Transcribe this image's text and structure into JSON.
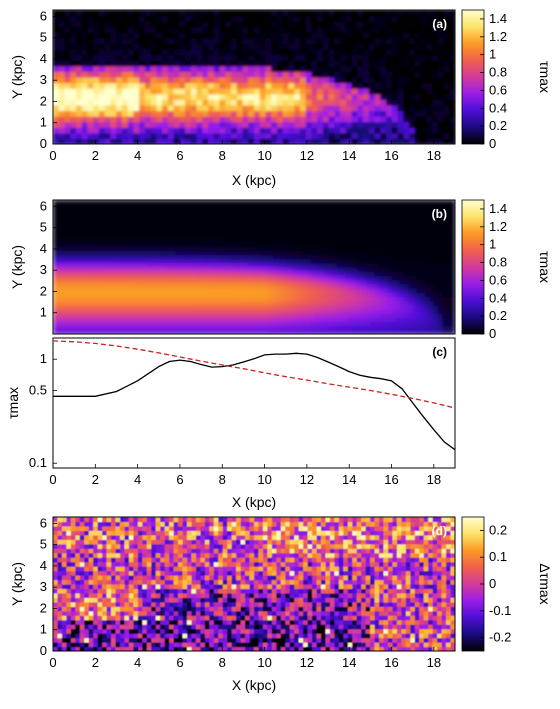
{
  "chart_data": [
    {
      "type": "heatmap",
      "panel_label": "(a)",
      "xlabel": "X (kpc)",
      "ylabel": "Y (kpc)",
      "xlim": [
        0,
        19
      ],
      "ylim": [
        0,
        6.3
      ],
      "xticks": [
        "0",
        "2",
        "4",
        "6",
        "8",
        "10",
        "12",
        "14",
        "16",
        "18"
      ],
      "yticks": [
        "0",
        "1",
        "2",
        "3",
        "4",
        "5",
        "6"
      ],
      "colorbar": {
        "label": "τmax",
        "range": [
          0,
          1.5
        ],
        "ticks": [
          "0",
          "0.2",
          "0.4",
          "0.6",
          "0.8",
          "1",
          "1.2",
          "1.4"
        ],
        "palette": [
          "#000000",
          "#1a0a80",
          "#4e0ed6",
          "#9a1ee8",
          "#d43a9a",
          "#f0604c",
          "#fb9a24",
          "#fde36a",
          "#ffffd0"
        ]
      },
      "description_values": {
        "peak_y": 2.2,
        "peak_value": 1.4,
        "disk_edge_x": 16.5,
        "disk_height_at_x0": 3.8
      }
    },
    {
      "type": "heatmap",
      "panel_label": "(b)",
      "xlabel": "",
      "ylabel": "Y (kpc)",
      "xlim": [
        0,
        19
      ],
      "ylim": [
        0,
        6.3
      ],
      "xticks": [],
      "yticks": [
        "1",
        "2",
        "3",
        "4",
        "5",
        "6"
      ],
      "colorbar": {
        "label": "τmax",
        "range": [
          0,
          1.5
        ],
        "ticks": [
          "0",
          "0.2",
          "0.4",
          "0.6",
          "0.8",
          "1",
          "1.2",
          "1.4"
        ],
        "palette": [
          "#000000",
          "#1a0a80",
          "#4e0ed6",
          "#9a1ee8",
          "#d43a9a",
          "#f0604c",
          "#fb9a24",
          "#fde36a",
          "#ffffd0"
        ]
      },
      "description_values": {
        "peak_y": 2.0,
        "peak_value": 1.0,
        "disk_edge_x": 18.5,
        "disk_height_at_x0": 3.6
      }
    },
    {
      "type": "line",
      "panel_label": "(c)",
      "xlabel": "X (kpc)",
      "ylabel": "τmax",
      "xlim": [
        0,
        19
      ],
      "ylim": [
        0.09,
        1.6
      ],
      "yscale": "log",
      "xticks": [
        "0",
        "2",
        "4",
        "6",
        "8",
        "10",
        "12",
        "14",
        "16",
        "18"
      ],
      "yticks": [
        {
          "label": "0.1",
          "value": 0.1
        },
        {
          "label": "0.5",
          "value": 0.5
        },
        {
          "label": "1",
          "value": 1.0
        }
      ],
      "series": [
        {
          "style": "solid",
          "color": "#000000",
          "x": [
            0,
            1,
            2,
            3,
            4,
            5,
            5.5,
            6,
            6.5,
            7,
            7.5,
            8,
            8.5,
            9,
            9.5,
            10,
            10.5,
            11,
            11.5,
            12,
            12.5,
            13,
            13.5,
            14,
            14.5,
            15,
            15.5,
            16,
            16.5,
            17,
            17.5,
            18,
            18.5,
            19
          ],
          "y": [
            0.44,
            0.44,
            0.44,
            0.49,
            0.62,
            0.85,
            0.95,
            0.98,
            0.95,
            0.89,
            0.84,
            0.85,
            0.88,
            0.94,
            1.01,
            1.1,
            1.12,
            1.12,
            1.14,
            1.12,
            1.04,
            0.94,
            0.85,
            0.76,
            0.7,
            0.67,
            0.65,
            0.62,
            0.52,
            0.38,
            0.28,
            0.21,
            0.16,
            0.135
          ]
        },
        {
          "style": "dashed",
          "color": "#cc2222",
          "x": [
            0,
            1,
            2,
            3,
            4,
            5,
            6,
            7,
            8,
            9,
            10,
            11,
            12,
            13,
            14,
            15,
            16,
            17,
            18,
            19
          ],
          "y": [
            1.5,
            1.47,
            1.42,
            1.34,
            1.25,
            1.15,
            1.05,
            0.96,
            0.88,
            0.81,
            0.74,
            0.68,
            0.63,
            0.58,
            0.54,
            0.5,
            0.46,
            0.42,
            0.38,
            0.34
          ]
        }
      ]
    },
    {
      "type": "heatmap",
      "panel_label": "(d)",
      "xlabel": "X (kpc)",
      "ylabel": "Y (kpc)",
      "xlim": [
        0,
        19
      ],
      "ylim": [
        0,
        6.3
      ],
      "xticks": [
        "0",
        "2",
        "4",
        "6",
        "8",
        "10",
        "12",
        "14",
        "16",
        "18"
      ],
      "yticks": [
        "0",
        "1",
        "2",
        "3",
        "4",
        "5",
        "6"
      ],
      "colorbar": {
        "label": "Δτmax",
        "range": [
          -0.25,
          0.25
        ],
        "ticks": [
          "-0.2",
          "-0.1",
          "0",
          "0.1",
          "0.2"
        ],
        "palette": [
          "#000000",
          "#1a0a80",
          "#4e0ed6",
          "#9a1ee8",
          "#d43a9a",
          "#f0604c",
          "#fb9a24",
          "#fde36a",
          "#ffffd0"
        ]
      }
    }
  ]
}
